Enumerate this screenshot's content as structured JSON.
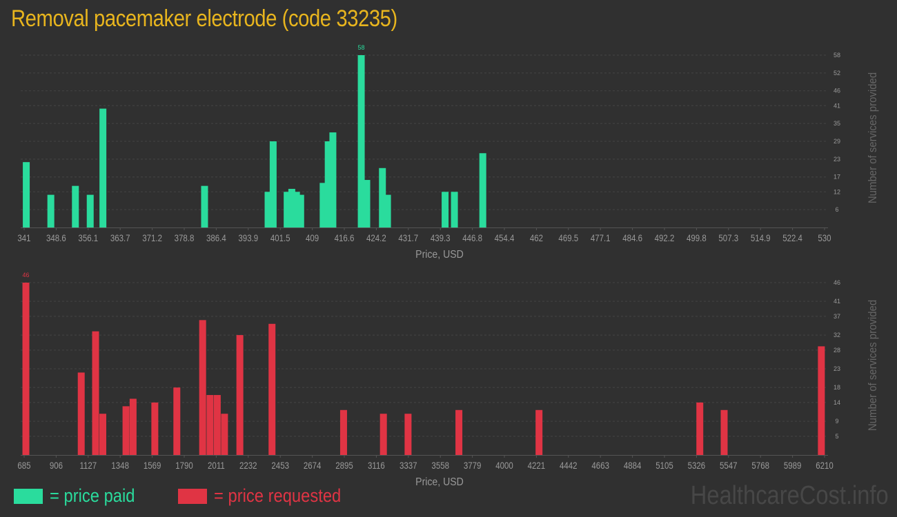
{
  "title": "Removal pacemaker electrode (code 33235)",
  "chart_data": [
    {
      "type": "bar",
      "name": "price-paid",
      "color": "#2adc9d",
      "xlabel": "Price, USD",
      "ylabel": "Number of services provided",
      "x_range": [
        341,
        530
      ],
      "ylim": [
        0,
        58
      ],
      "x_ticks": [
        "341",
        "348.6",
        "356.1",
        "363.7",
        "371.2",
        "378.8",
        "386.4",
        "393.9",
        "401.5",
        "409",
        "416.6",
        "424.2",
        "431.7",
        "439.3",
        "446.8",
        "454.4",
        "462",
        "469.5",
        "477.1",
        "484.6",
        "492.2",
        "499.8",
        "507.3",
        "514.9",
        "522.4",
        "530"
      ],
      "y_ticks": [
        6,
        12,
        17,
        23,
        29,
        35,
        41,
        46,
        52,
        58
      ],
      "max_label": "58",
      "bars": [
        {
          "x": 341.5,
          "y": 22
        },
        {
          "x": 347.3,
          "y": 11
        },
        {
          "x": 353.1,
          "y": 14
        },
        {
          "x": 356.6,
          "y": 11
        },
        {
          "x": 359.6,
          "y": 40
        },
        {
          "x": 383.6,
          "y": 14
        },
        {
          "x": 398.6,
          "y": 12
        },
        {
          "x": 399.8,
          "y": 29
        },
        {
          "x": 403.1,
          "y": 12
        },
        {
          "x": 404.2,
          "y": 13
        },
        {
          "x": 405.3,
          "y": 12
        },
        {
          "x": 406.3,
          "y": 11
        },
        {
          "x": 411.6,
          "y": 15
        },
        {
          "x": 412.8,
          "y": 29
        },
        {
          "x": 413.9,
          "y": 32
        },
        {
          "x": 420.6,
          "y": 58
        },
        {
          "x": 421.9,
          "y": 16
        },
        {
          "x": 425.6,
          "y": 20
        },
        {
          "x": 426.8,
          "y": 11
        },
        {
          "x": 440.4,
          "y": 12
        },
        {
          "x": 442.6,
          "y": 12
        },
        {
          "x": 449.3,
          "y": 25
        }
      ]
    },
    {
      "type": "bar",
      "name": "price-requested",
      "color": "#e03444",
      "xlabel": "Price, USD",
      "ylabel": "Number of services provided",
      "x_range": [
        685,
        6210
      ],
      "ylim": [
        0,
        46
      ],
      "x_ticks": [
        "685",
        "906",
        "1127",
        "1348",
        "1569",
        "1790",
        "2011",
        "2232",
        "2453",
        "2674",
        "2895",
        "3116",
        "3337",
        "3558",
        "3779",
        "4000",
        "4221",
        "4442",
        "4663",
        "4884",
        "5105",
        "5326",
        "5547",
        "5768",
        "5989",
        "6210"
      ],
      "y_ticks": [
        5,
        9,
        14,
        18,
        23,
        28,
        32,
        37,
        41,
        46
      ],
      "max_label": "46",
      "bars": [
        {
          "x": 697,
          "y": 46
        },
        {
          "x": 1079,
          "y": 22
        },
        {
          "x": 1178,
          "y": 33
        },
        {
          "x": 1228,
          "y": 11
        },
        {
          "x": 1388,
          "y": 13
        },
        {
          "x": 1437,
          "y": 15
        },
        {
          "x": 1587,
          "y": 14
        },
        {
          "x": 1739,
          "y": 18
        },
        {
          "x": 1917,
          "y": 36
        },
        {
          "x": 1968,
          "y": 16
        },
        {
          "x": 2018,
          "y": 16
        },
        {
          "x": 2068,
          "y": 11
        },
        {
          "x": 2174,
          "y": 32
        },
        {
          "x": 2396,
          "y": 35
        },
        {
          "x": 2890,
          "y": 12
        },
        {
          "x": 3165,
          "y": 11
        },
        {
          "x": 3335,
          "y": 11
        },
        {
          "x": 3686,
          "y": 12
        },
        {
          "x": 4239,
          "y": 12
        },
        {
          "x": 5349,
          "y": 14
        },
        {
          "x": 5517,
          "y": 12
        },
        {
          "x": 6188,
          "y": 29
        }
      ]
    }
  ],
  "legend": [
    {
      "label": "= price paid",
      "color": "#2adc9d"
    },
    {
      "label": "= price requested",
      "color": "#e03444"
    }
  ],
  "watermark": "HealthcareCost.info",
  "colors": {
    "background": "#303030",
    "title": "#e8b51e",
    "axis_text": "#999999",
    "grid": "#444444",
    "watermark": "#474747"
  }
}
